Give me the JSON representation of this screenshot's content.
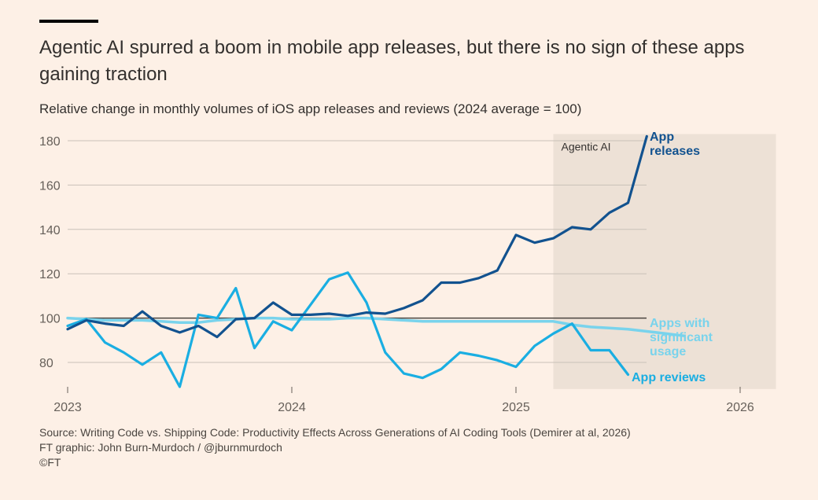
{
  "title": "Agentic AI spurred a boom in mobile app releases, but there is no sign of these apps gaining traction",
  "subtitle": "Relative change in monthly volumes of iOS app releases and reviews (2024 average = 100)",
  "source": "Source: Writing Code vs. Shipping Code: Productivity Effects Across Generations of AI Coding Tools (Demirer at al, 2026)",
  "credit": "FT graphic: John Burn-Murdoch / @jburnmurdoch",
  "copyright": "©FT",
  "colors": {
    "background": "#fdf0e6",
    "shade": "#ede1d6",
    "grid": "#c9c1b8",
    "baseline": "#4a4540",
    "releases": "#12528f",
    "reviews": "#1aaee2",
    "usage": "#79d3ec",
    "text": "#33302e",
    "axis_text": "#66605a"
  },
  "chart_data": {
    "type": "line",
    "x_unit": "month",
    "x_start": "2023-01",
    "x_ticks": [
      {
        "label": "2023",
        "month": 0
      },
      {
        "label": "2024",
        "month": 12
      },
      {
        "label": "2025",
        "month": 24
      },
      {
        "label": "2026",
        "month": 36
      }
    ],
    "y_ticks": [
      80,
      100,
      120,
      140,
      160,
      180
    ],
    "ylim": [
      68,
      183
    ],
    "reference_line": 100,
    "shaded_region": {
      "label": "Agentic AI",
      "start_month": 26,
      "end_month": 38
    },
    "series": [
      {
        "name": "App releases",
        "label_lines": [
          "App",
          "releases"
        ],
        "color_key": "releases",
        "values": [
          95,
          99,
          97.5,
          96.5,
          103,
          96.5,
          93.5,
          96.5,
          91.5,
          99.5,
          100,
          107,
          101.5,
          101.5,
          102,
          101,
          102.5,
          102,
          104.5,
          108,
          116,
          116,
          118,
          121.5,
          137.5,
          134,
          136,
          141,
          140,
          147.5,
          152,
          182
        ]
      },
      {
        "name": "App reviews",
        "label_lines": [
          "App reviews"
        ],
        "color_key": "reviews",
        "values": [
          96.5,
          99.5,
          89,
          84.5,
          79,
          84.5,
          69,
          101.5,
          100,
          113.5,
          86.5,
          98.5,
          94.5,
          106,
          117.5,
          120.5,
          107,
          84.5,
          75,
          73,
          77,
          84.5,
          83,
          81,
          78,
          87.5,
          93,
          97.5,
          85.5,
          85.5,
          74.5
        ]
      },
      {
        "name": "Apps with significant usage",
        "label_lines": [
          "Apps with",
          "significant",
          "usage"
        ],
        "color_key": "usage",
        "values": [
          100,
          99.5,
          99,
          99,
          99,
          98.5,
          98,
          98,
          99,
          99.5,
          100,
          100,
          99.5,
          99.5,
          99.5,
          100,
          100,
          99.5,
          99,
          98.5,
          98.5,
          98.5,
          98.5,
          98.5,
          98.5,
          98.5,
          98.5,
          97,
          96,
          95.5,
          95,
          94,
          93,
          92
        ]
      }
    ]
  }
}
